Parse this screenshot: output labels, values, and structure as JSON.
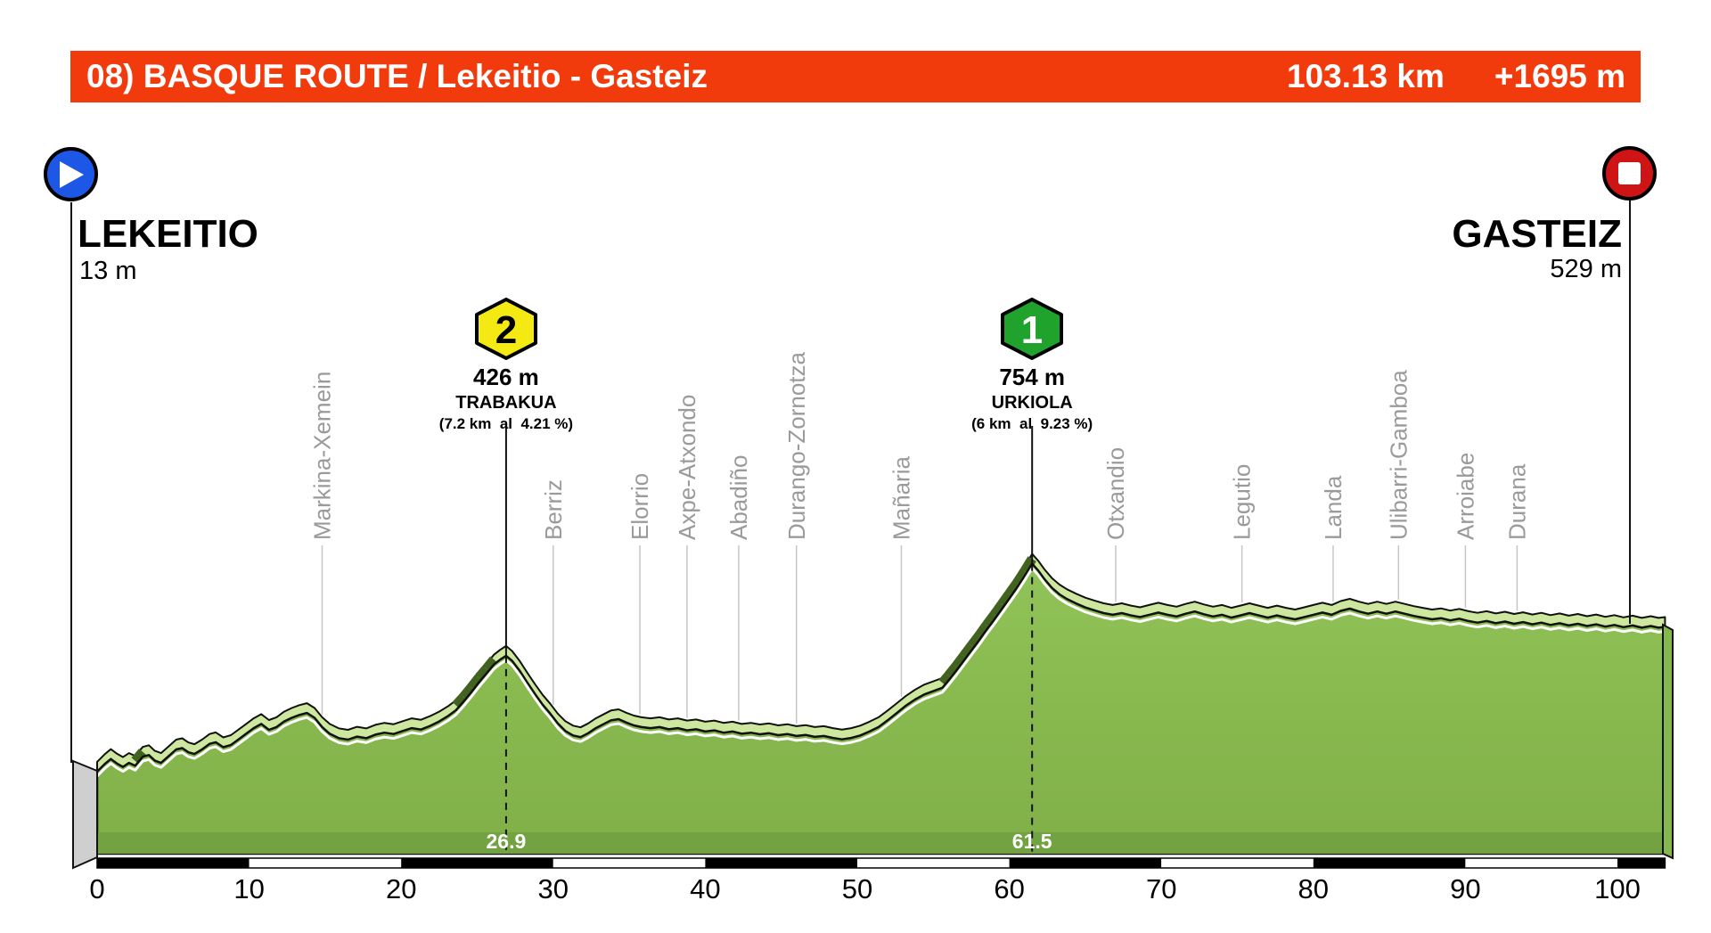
{
  "banner": {
    "title": "08) BASQUE ROUTE / Lekeitio - Gasteiz",
    "distance": "103.13 km",
    "gain": "+1695 m",
    "bg_color": "#F13B0D",
    "text_color": "#FFFFFF"
  },
  "start": {
    "name": "LEKEITIO",
    "elevation_label": "13 m",
    "marker_color": "#1D57E5"
  },
  "finish": {
    "name": "GASTEIZ",
    "elevation_label": "529 m",
    "marker_color": "#CE1414"
  },
  "climbs": [
    {
      "category": "2",
      "badge_color": "#F4E912",
      "number_color": "#000000",
      "elevation_label": "426 m",
      "name": "TRABAKUA",
      "detail": "(7.2 km  al  4.21 %)",
      "summit_km": 26.9,
      "summit_elevation_m": 426,
      "summit_label": "26.9"
    },
    {
      "category": "1",
      "badge_color": "#1FA32D",
      "number_color": "#FFFFFF",
      "elevation_label": "754 m",
      "name": "URKIOLA",
      "detail": "(6 km  al  9.23 %)",
      "summit_km": 61.5,
      "summit_elevation_m": 754,
      "summit_label": "61.5"
    }
  ],
  "chart_data": {
    "type": "area",
    "title": "08) BASQUE ROUTE / Lekeitio - Gasteiz",
    "x_unit": "km",
    "y_unit": "m",
    "xlim": [
      0,
      103.13
    ],
    "x_ticks": [
      0,
      10,
      20,
      30,
      40,
      50,
      60,
      70,
      80,
      90,
      100
    ],
    "total_distance_km": 103.13,
    "total_climb_m": 1695,
    "start_elevation_m": 13,
    "finish_elevation_m": 529,
    "towns": [
      {
        "name": "Markina-Xemein",
        "km": 14.8
      },
      {
        "name": "Berriz",
        "km": 30.0
      },
      {
        "name": "Elorrio",
        "km": 35.7
      },
      {
        "name": "Axpe-Atxondo",
        "km": 38.8
      },
      {
        "name": "Abadiño",
        "km": 42.2
      },
      {
        "name": "Durango-Zornotza",
        "km": 46.0
      },
      {
        "name": "Mañaria",
        "km": 52.9
      },
      {
        "name": "Otxandio",
        "km": 67.0
      },
      {
        "name": "Legutio",
        "km": 75.3
      },
      {
        "name": "Landa",
        "km": 81.3
      },
      {
        "name": "Ulibarri-Gamboa",
        "km": 85.6
      },
      {
        "name": "Arroiabe",
        "km": 90.0
      },
      {
        "name": "Durana",
        "km": 93.4
      }
    ],
    "points_km_elevation_m": [
      [
        0,
        13
      ],
      [
        0.5,
        40
      ],
      [
        0.9,
        58
      ],
      [
        1.3,
        42
      ],
      [
        1.7,
        30
      ],
      [
        2.1,
        44
      ],
      [
        2.5,
        34
      ],
      [
        3.0,
        66
      ],
      [
        3.4,
        72
      ],
      [
        3.8,
        52
      ],
      [
        4.2,
        44
      ],
      [
        4.7,
        68
      ],
      [
        5.2,
        92
      ],
      [
        5.6,
        97
      ],
      [
        6.0,
        82
      ],
      [
        6.4,
        76
      ],
      [
        6.9,
        92
      ],
      [
        7.4,
        112
      ],
      [
        7.8,
        118
      ],
      [
        8.3,
        100
      ],
      [
        8.8,
        108
      ],
      [
        9.3,
        128
      ],
      [
        9.8,
        148
      ],
      [
        10.3,
        168
      ],
      [
        10.8,
        183
      ],
      [
        11.3,
        162
      ],
      [
        11.8,
        172
      ],
      [
        12.3,
        192
      ],
      [
        12.8,
        205
      ],
      [
        13.3,
        215
      ],
      [
        13.8,
        222
      ],
      [
        14.3,
        205
      ],
      [
        14.8,
        172
      ],
      [
        15.3,
        148
      ],
      [
        15.9,
        132
      ],
      [
        16.5,
        127
      ],
      [
        17.1,
        138
      ],
      [
        17.7,
        132
      ],
      [
        18.3,
        145
      ],
      [
        18.9,
        152
      ],
      [
        19.5,
        147
      ],
      [
        20.1,
        158
      ],
      [
        20.7,
        168
      ],
      [
        21.3,
        163
      ],
      [
        21.9,
        176
      ],
      [
        22.5,
        192
      ],
      [
        23.1,
        212
      ],
      [
        23.6,
        232
      ],
      [
        24.1,
        262
      ],
      [
        24.6,
        295
      ],
      [
        25.1,
        330
      ],
      [
        25.6,
        362
      ],
      [
        26.1,
        395
      ],
      [
        26.5,
        412
      ],
      [
        26.9,
        426
      ],
      [
        27.3,
        408
      ],
      [
        27.8,
        372
      ],
      [
        28.3,
        330
      ],
      [
        28.8,
        290
      ],
      [
        29.3,
        252
      ],
      [
        29.8,
        220
      ],
      [
        30.3,
        185
      ],
      [
        30.8,
        158
      ],
      [
        31.3,
        142
      ],
      [
        31.8,
        136
      ],
      [
        32.3,
        150
      ],
      [
        32.8,
        168
      ],
      [
        33.3,
        182
      ],
      [
        33.8,
        196
      ],
      [
        34.3,
        200
      ],
      [
        34.8,
        188
      ],
      [
        35.3,
        178
      ],
      [
        35.8,
        172
      ],
      [
        36.4,
        168
      ],
      [
        37.0,
        172
      ],
      [
        37.6,
        164
      ],
      [
        38.2,
        168
      ],
      [
        38.8,
        160
      ],
      [
        39.4,
        164
      ],
      [
        40.0,
        156
      ],
      [
        40.6,
        160
      ],
      [
        41.2,
        152
      ],
      [
        41.8,
        156
      ],
      [
        42.4,
        148
      ],
      [
        43.0,
        152
      ],
      [
        43.6,
        146
      ],
      [
        44.2,
        150
      ],
      [
        44.8,
        143
      ],
      [
        45.4,
        147
      ],
      [
        46.0,
        140
      ],
      [
        46.6,
        144
      ],
      [
        47.2,
        137
      ],
      [
        47.8,
        140
      ],
      [
        48.4,
        133
      ],
      [
        49.0,
        128
      ],
      [
        49.6,
        133
      ],
      [
        50.2,
        142
      ],
      [
        50.8,
        156
      ],
      [
        51.4,
        172
      ],
      [
        52.0,
        196
      ],
      [
        52.6,
        222
      ],
      [
        53.2,
        248
      ],
      [
        53.8,
        270
      ],
      [
        54.4,
        288
      ],
      [
        55.0,
        300
      ],
      [
        55.6,
        312
      ],
      [
        56.0,
        338
      ],
      [
        56.5,
        372
      ],
      [
        57.0,
        408
      ],
      [
        57.5,
        444
      ],
      [
        58.0,
        480
      ],
      [
        58.5,
        518
      ],
      [
        59.0,
        554
      ],
      [
        59.5,
        592
      ],
      [
        60.0,
        630
      ],
      [
        60.5,
        668
      ],
      [
        61.0,
        710
      ],
      [
        61.5,
        754
      ],
      [
        61.9,
        730
      ],
      [
        62.3,
        700
      ],
      [
        62.8,
        668
      ],
      [
        63.3,
        645
      ],
      [
        63.8,
        628
      ],
      [
        64.4,
        612
      ],
      [
        65.0,
        598
      ],
      [
        65.6,
        588
      ],
      [
        66.2,
        578
      ],
      [
        66.8,
        572
      ],
      [
        67.4,
        578
      ],
      [
        68.0,
        570
      ],
      [
        68.6,
        564
      ],
      [
        69.2,
        572
      ],
      [
        69.8,
        580
      ],
      [
        70.4,
        572
      ],
      [
        71.0,
        566
      ],
      [
        71.6,
        576
      ],
      [
        72.2,
        584
      ],
      [
        72.8,
        574
      ],
      [
        73.4,
        566
      ],
      [
        74.0,
        572
      ],
      [
        74.6,
        562
      ],
      [
        75.2,
        570
      ],
      [
        75.8,
        578
      ],
      [
        76.4,
        570
      ],
      [
        77.0,
        562
      ],
      [
        77.6,
        570
      ],
      [
        78.2,
        562
      ],
      [
        78.8,
        556
      ],
      [
        79.4,
        564
      ],
      [
        80.0,
        572
      ],
      [
        80.6,
        580
      ],
      [
        81.2,
        572
      ],
      [
        81.8,
        586
      ],
      [
        82.4,
        594
      ],
      [
        83.0,
        584
      ],
      [
        83.6,
        576
      ],
      [
        84.2,
        584
      ],
      [
        84.8,
        576
      ],
      [
        85.4,
        584
      ],
      [
        86.0,
        576
      ],
      [
        86.6,
        568
      ],
      [
        87.2,
        562
      ],
      [
        87.8,
        556
      ],
      [
        88.4,
        560
      ],
      [
        89.0,
        552
      ],
      [
        89.6,
        558
      ],
      [
        90.2,
        550
      ],
      [
        90.8,
        544
      ],
      [
        91.4,
        550
      ],
      [
        92.0,
        542
      ],
      [
        92.6,
        548
      ],
      [
        93.2,
        540
      ],
      [
        93.8,
        546
      ],
      [
        94.4,
        538
      ],
      [
        95.0,
        544
      ],
      [
        95.6,
        536
      ],
      [
        96.2,
        542
      ],
      [
        96.8,
        534
      ],
      [
        97.4,
        540
      ],
      [
        98.0,
        532
      ],
      [
        98.6,
        538
      ],
      [
        99.2,
        530
      ],
      [
        99.8,
        536
      ],
      [
        100.4,
        528
      ],
      [
        101.0,
        534
      ],
      [
        101.6,
        526
      ],
      [
        102.2,
        532
      ],
      [
        102.7,
        526
      ],
      [
        103.13,
        529
      ]
    ],
    "summit_marker_labels": [
      "26.9",
      "61.5"
    ],
    "colors": {
      "fill": "#8DC053",
      "fill_light_ribbon": "#CDE89E",
      "fill_bottom_band": "#73A243",
      "steep_shade": "#42631F",
      "gridline": "#C6C6C6",
      "town_label": "#9A9A9A",
      "axis_black": "#000000",
      "axis_white": "#FFFFFF"
    },
    "legend": null,
    "grid": "vertical town lines only"
  }
}
